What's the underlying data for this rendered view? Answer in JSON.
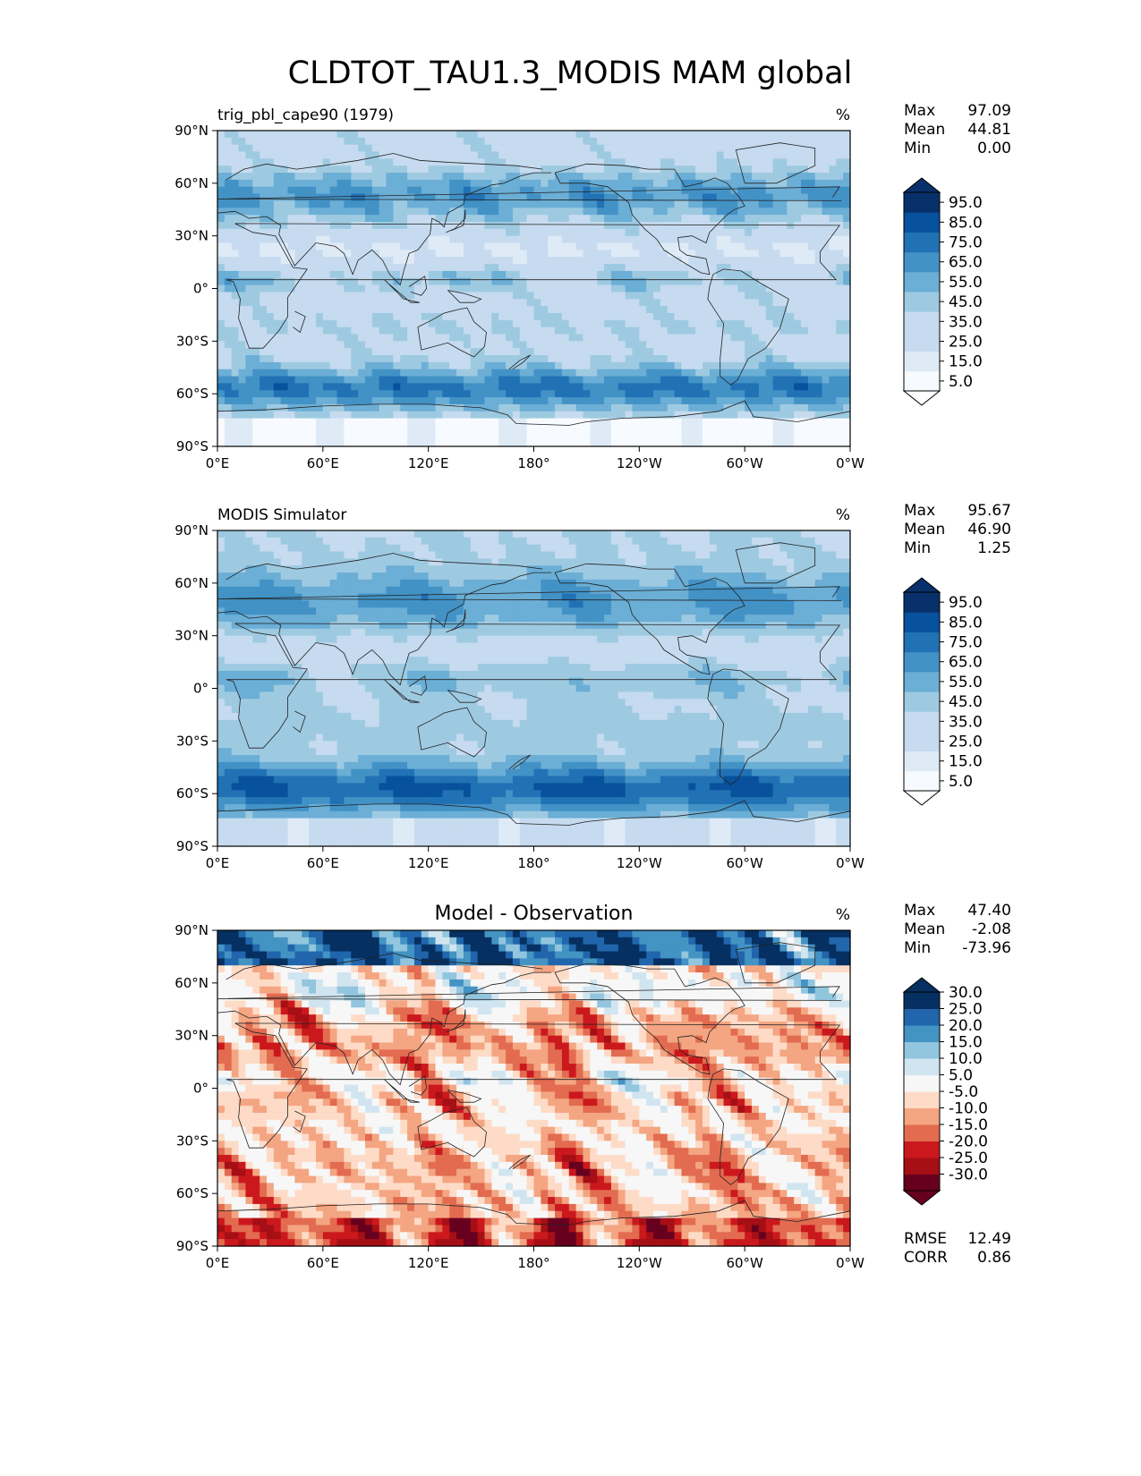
{
  "page_title": "CLDTOT_TAU1.3_MODIS MAM global",
  "colors": {
    "blues": [
      "#f7fbff",
      "#deebf7",
      "#c6dbef",
      "#9ecae1",
      "#6baed6",
      "#4292c6",
      "#2171b5",
      "#08519c",
      "#08306b"
    ],
    "diff": [
      "#67001f",
      "#a50f15",
      "#cb181d",
      "#e26b50",
      "#f4a582",
      "#fddbc7",
      "#f7f7f7",
      "#d1e5f0",
      "#92c5de",
      "#4393c3",
      "#2166ac",
      "#053061"
    ]
  },
  "axes_labels": {
    "lat": [
      "90°N",
      "60°N",
      "30°N",
      "0°",
      "30°S",
      "60°S",
      "90°S"
    ],
    "lon": [
      "0°E",
      "60°E",
      "120°E",
      "180°",
      "120°W",
      "60°W",
      "0°W"
    ]
  },
  "chart_data": [
    {
      "type": "heatmap",
      "panel": "top",
      "title_left": "trig_pbl_cape90 (1979)",
      "title_center": "",
      "units": "%",
      "stats": [
        [
          "Max",
          "97.09"
        ],
        [
          "Mean",
          "44.81"
        ],
        [
          "Min",
          "0.00"
        ]
      ],
      "colorbar": {
        "levels": [
          0,
          10,
          20,
          30,
          40,
          50,
          60,
          70,
          80,
          90,
          100
        ],
        "tick_labels": [
          "5.0",
          "15.0",
          "25.0",
          "35.0",
          "45.0",
          "55.0",
          "65.0",
          "75.0",
          "85.0",
          "95.0"
        ],
        "extend": "both"
      },
      "xlim": [
        0,
        360
      ],
      "ylim": [
        -90,
        90
      ]
    },
    {
      "type": "heatmap",
      "panel": "middle",
      "title_left": "MODIS Simulator",
      "title_center": "",
      "units": "%",
      "stats": [
        [
          "Max",
          "95.67"
        ],
        [
          "Mean",
          "46.90"
        ],
        [
          "Min",
          "1.25"
        ]
      ],
      "colorbar": {
        "levels": [
          0,
          10,
          20,
          30,
          40,
          50,
          60,
          70,
          80,
          90,
          100
        ],
        "tick_labels": [
          "5.0",
          "15.0",
          "25.0",
          "35.0",
          "45.0",
          "55.0",
          "65.0",
          "75.0",
          "85.0",
          "95.0"
        ],
        "extend": "both"
      },
      "xlim": [
        0,
        360
      ],
      "ylim": [
        -90,
        90
      ]
    },
    {
      "type": "heatmap",
      "panel": "bottom",
      "title_left": "",
      "title_center": "Model - Observation",
      "units": "%",
      "stats": [
        [
          "Max",
          "47.40"
        ],
        [
          "Mean",
          "-2.08"
        ],
        [
          "Min",
          "-73.96"
        ]
      ],
      "metrics": [
        [
          "RMSE",
          "12.49"
        ],
        [
          "CORR",
          "0.86"
        ]
      ],
      "colorbar": {
        "levels": [
          -35,
          -30,
          -25,
          -20,
          -15,
          -10,
          -5,
          5,
          10,
          15,
          20,
          25,
          30
        ],
        "tick_labels": [
          "-30.0",
          "-25.0",
          "-20.0",
          "-15.0",
          "-10.0",
          "-5.0",
          "5.0",
          "10.0",
          "15.0",
          "20.0",
          "25.0",
          "30.0"
        ],
        "extend": "both"
      },
      "xlim": [
        0,
        360
      ],
      "ylim": [
        -90,
        90
      ]
    }
  ]
}
